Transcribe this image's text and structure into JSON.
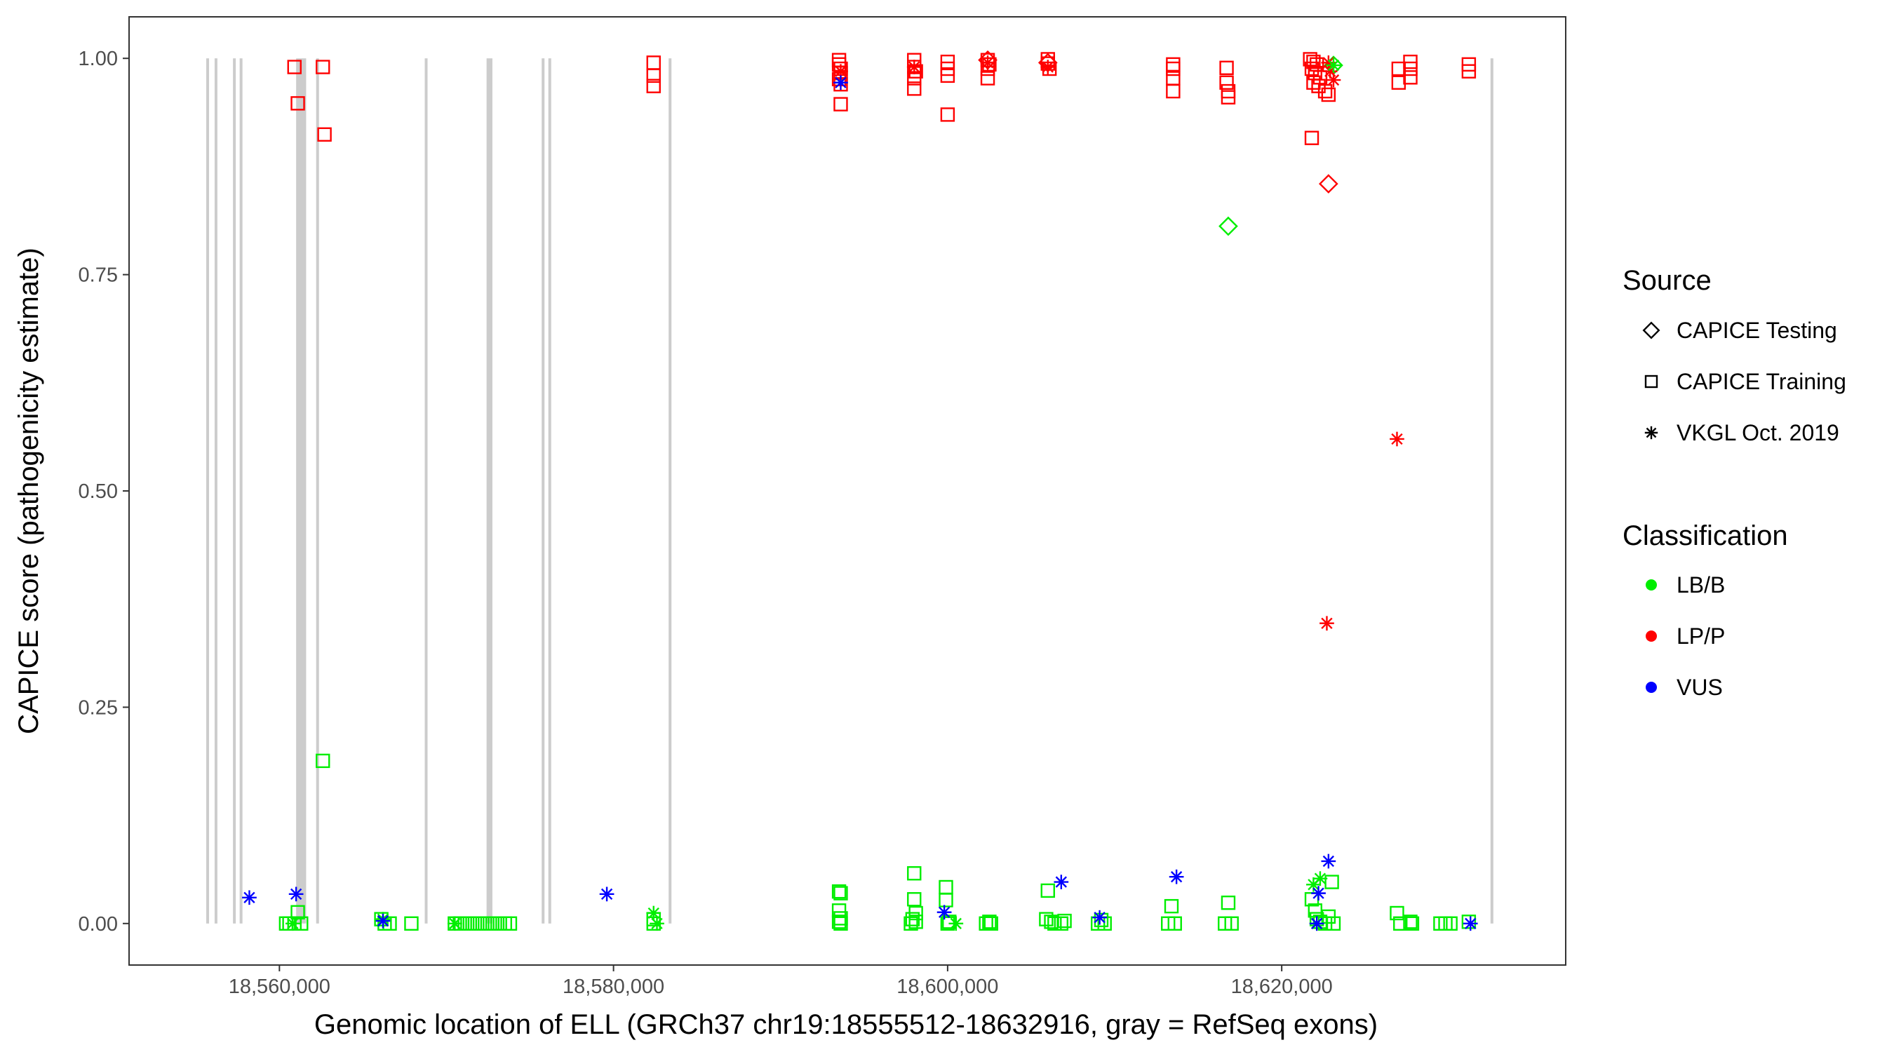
{
  "chart_data": {
    "type": "scatter",
    "xlabel": "Genomic location of ELL (GRCh37 chr19:18555512-18632916, gray = RefSeq exons)",
    "ylabel": "CAPICE score (pathogenicity estimate)",
    "xlim": [
      18551000,
      18637000
    ],
    "ylim": [
      -0.048,
      1.048
    ],
    "x_ticks": [
      {
        "value": 18560000,
        "label": "18,560,000"
      },
      {
        "value": 18580000,
        "label": "18,580,000"
      },
      {
        "value": 18600000,
        "label": "18,600,000"
      },
      {
        "value": 18620000,
        "label": "18,620,000"
      }
    ],
    "y_ticks": [
      {
        "value": 0,
        "label": "0.00"
      },
      {
        "value": 0.25,
        "label": "0.25"
      },
      {
        "value": 0.5,
        "label": "0.50"
      },
      {
        "value": 0.75,
        "label": "0.75"
      },
      {
        "value": 1,
        "label": "1.00"
      }
    ],
    "grid": false,
    "exon_color": "#cccccc",
    "exons": [
      [
        18555620,
        18555720
      ],
      [
        18556120,
        18556220
      ],
      [
        18557220,
        18557320
      ],
      [
        18557620,
        18557720
      ],
      [
        18561000,
        18561600
      ],
      [
        18562200,
        18562320
      ],
      [
        18568700,
        18568820
      ],
      [
        18572400,
        18572750
      ],
      [
        18575700,
        18575820
      ],
      [
        18576100,
        18576220
      ],
      [
        18583300,
        18583400
      ],
      [
        18632500,
        18632650
      ]
    ],
    "legend": {
      "placement": "right",
      "source_title": "Source",
      "shape_entries": [
        {
          "label": "CAPICE Testing",
          "shape": "diamond"
        },
        {
          "label": "CAPICE Training",
          "shape": "square"
        },
        {
          "label": "VKGL Oct. 2019",
          "shape": "asterisk"
        }
      ],
      "class_title": "Classification",
      "color_entries": [
        {
          "label": "LB/B",
          "color": "#00ee00"
        },
        {
          "label": "LP/P",
          "color": "#ff0000"
        },
        {
          "label": "VUS",
          "color": "#0000ff"
        }
      ]
    },
    "series": [
      {
        "shape": "square",
        "color": "#ff0000",
        "points": [
          [
            18560900,
            0.99
          ],
          [
            18561100,
            0.948
          ],
          [
            18562600,
            0.99
          ],
          [
            18562700,
            0.912
          ],
          [
            18582400,
            0.995
          ],
          [
            18582400,
            0.98
          ],
          [
            18582400,
            0.968
          ],
          [
            18593500,
            0.998
          ],
          [
            18593500,
            0.993
          ],
          [
            18593600,
            0.988
          ],
          [
            18593600,
            0.983
          ],
          [
            18593500,
            0.976
          ],
          [
            18593600,
            0.97
          ],
          [
            18593600,
            0.947
          ],
          [
            18598000,
            0.998
          ],
          [
            18598000,
            0.99
          ],
          [
            18598100,
            0.985
          ],
          [
            18598000,
            0.977
          ],
          [
            18598000,
            0.965
          ],
          [
            18600000,
            0.996
          ],
          [
            18600000,
            0.988
          ],
          [
            18600000,
            0.98
          ],
          [
            18600000,
            0.935
          ],
          [
            18602400,
            0.998
          ],
          [
            18602500,
            0.993
          ],
          [
            18602400,
            0.988
          ],
          [
            18602400,
            0.977
          ],
          [
            18606000,
            0.999
          ],
          [
            18606000,
            0.994
          ],
          [
            18606100,
            0.988
          ],
          [
            18613500,
            0.993
          ],
          [
            18613500,
            0.988
          ],
          [
            18613500,
            0.977
          ],
          [
            18613500,
            0.962
          ],
          [
            18616700,
            0.989
          ],
          [
            18616700,
            0.972
          ],
          [
            18616800,
            0.962
          ],
          [
            18616800,
            0.955
          ],
          [
            18621700,
            0.999
          ],
          [
            18621900,
            0.996
          ],
          [
            18622100,
            0.993
          ],
          [
            18621800,
            0.988
          ],
          [
            18622000,
            0.983
          ],
          [
            18622300,
            0.978
          ],
          [
            18621900,
            0.972
          ],
          [
            18622200,
            0.968
          ],
          [
            18622600,
            0.962
          ],
          [
            18622800,
            0.958
          ],
          [
            18621800,
            0.908
          ],
          [
            18627000,
            0.988
          ],
          [
            18627000,
            0.972
          ],
          [
            18627700,
            0.996
          ],
          [
            18627700,
            0.988
          ],
          [
            18627700,
            0.978
          ],
          [
            18631200,
            0.993
          ],
          [
            18631200,
            0.985
          ]
        ]
      },
      {
        "shape": "square",
        "color": "#00ee00",
        "points": [
          [
            18562600,
            0.188
          ],
          [
            18560400,
            0.0
          ],
          [
            18560600,
            0.0
          ],
          [
            18560900,
            0.0
          ],
          [
            18561100,
            0.013
          ],
          [
            18561300,
            0.0
          ],
          [
            18566100,
            0.005
          ],
          [
            18566300,
            0.0
          ],
          [
            18566600,
            0.0
          ],
          [
            18567900,
            0.0
          ],
          [
            18570500,
            0.0
          ],
          [
            18570800,
            0.0
          ],
          [
            18571100,
            0.0
          ],
          [
            18571400,
            0.0
          ],
          [
            18571700,
            0.0
          ],
          [
            18572000,
            0.0
          ],
          [
            18572300,
            0.0
          ],
          [
            18572600,
            0.0
          ],
          [
            18572900,
            0.0
          ],
          [
            18573200,
            0.0
          ],
          [
            18573500,
            0.0
          ],
          [
            18573800,
            0.0
          ],
          [
            18582400,
            0.005
          ],
          [
            18582400,
            0.0
          ],
          [
            18593500,
            0.037
          ],
          [
            18593600,
            0.035
          ],
          [
            18593500,
            0.015
          ],
          [
            18593600,
            0.006
          ],
          [
            18593500,
            0.002
          ],
          [
            18593600,
            0.0
          ],
          [
            18597800,
            0.0
          ],
          [
            18597900,
            0.005
          ],
          [
            18598000,
            0.058
          ],
          [
            18598000,
            0.028
          ],
          [
            18598100,
            0.012
          ],
          [
            18598100,
            0.002
          ],
          [
            18599900,
            0.042
          ],
          [
            18599900,
            0.027
          ],
          [
            18600000,
            0.0
          ],
          [
            18600100,
            0.002
          ],
          [
            18602300,
            0.0
          ],
          [
            18602500,
            0.002
          ],
          [
            18602600,
            0.0
          ],
          [
            18605900,
            0.005
          ],
          [
            18606000,
            0.038
          ],
          [
            18606200,
            0.002
          ],
          [
            18606400,
            0.0
          ],
          [
            18606800,
            0.0
          ],
          [
            18607000,
            0.003
          ],
          [
            18609000,
            0.0
          ],
          [
            18609200,
            0.004
          ],
          [
            18609400,
            0.0
          ],
          [
            18613200,
            0.0
          ],
          [
            18613400,
            0.02
          ],
          [
            18613600,
            0.0
          ],
          [
            18616600,
            0.0
          ],
          [
            18616800,
            0.024
          ],
          [
            18617000,
            0.0
          ],
          [
            18621800,
            0.028
          ],
          [
            18622000,
            0.015
          ],
          [
            18622100,
            0.005
          ],
          [
            18622300,
            0.002
          ],
          [
            18622600,
            0.0
          ],
          [
            18622800,
            0.008
          ],
          [
            18623000,
            0.048
          ],
          [
            18623100,
            0.0
          ],
          [
            18626900,
            0.012
          ],
          [
            18627100,
            0.0
          ],
          [
            18627700,
            0.002
          ],
          [
            18627800,
            0.0
          ],
          [
            18629500,
            0.0
          ],
          [
            18629800,
            0.0
          ],
          [
            18630100,
            0.0
          ],
          [
            18631200,
            0.002
          ]
        ]
      },
      {
        "shape": "diamond",
        "color": "#ff0000",
        "points": [
          [
            18622800,
            0.855
          ],
          [
            18602400,
            0.998
          ],
          [
            18606000,
            0.995
          ]
        ]
      },
      {
        "shape": "diamond",
        "color": "#00ee00",
        "points": [
          [
            18616800,
            0.806
          ],
          [
            18623100,
            0.992
          ]
        ]
      },
      {
        "shape": "asterisk",
        "color": "#ff0000",
        "points": [
          [
            18593600,
            0.985
          ],
          [
            18598000,
            0.99
          ],
          [
            18602400,
            0.995
          ],
          [
            18606000,
            0.99
          ],
          [
            18622800,
            0.995
          ],
          [
            18622900,
            0.985
          ],
          [
            18623100,
            0.975
          ],
          [
            18622700,
            0.347
          ],
          [
            18626900,
            0.56
          ]
        ]
      },
      {
        "shape": "asterisk",
        "color": "#00ee00",
        "points": [
          [
            18560800,
            0.0
          ],
          [
            18566200,
            0.005
          ],
          [
            18570500,
            0.0
          ],
          [
            18582400,
            0.012
          ],
          [
            18582600,
            0.0
          ],
          [
            18600500,
            0.0
          ],
          [
            18621900,
            0.045
          ],
          [
            18622300,
            0.052
          ],
          [
            18622100,
            0.0
          ],
          [
            18623100,
            0.992
          ]
        ]
      },
      {
        "shape": "asterisk",
        "color": "#0000ff",
        "points": [
          [
            18558200,
            0.03
          ],
          [
            18561000,
            0.034
          ],
          [
            18566200,
            0.003
          ],
          [
            18579600,
            0.034
          ],
          [
            18593600,
            0.972
          ],
          [
            18599800,
            0.013
          ],
          [
            18606800,
            0.048
          ],
          [
            18609100,
            0.007
          ],
          [
            18613700,
            0.054
          ],
          [
            18622200,
            0.035
          ],
          [
            18622800,
            0.072
          ],
          [
            18622100,
            0.0
          ],
          [
            18631300,
            0.0
          ]
        ]
      }
    ]
  }
}
